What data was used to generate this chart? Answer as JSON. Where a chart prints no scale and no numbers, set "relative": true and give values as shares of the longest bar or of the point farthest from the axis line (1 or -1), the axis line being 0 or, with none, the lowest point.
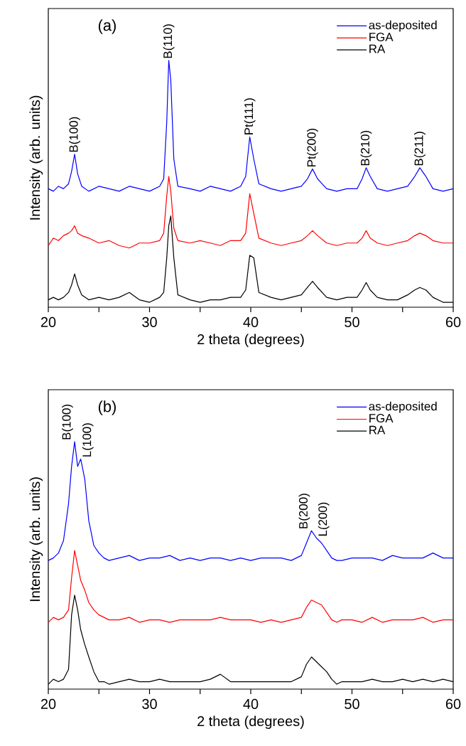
{
  "chart_data": [
    {
      "type": "line",
      "relative": true,
      "xlabel": "2 theta (degrees)",
      "ylabel": "Intensity (arb. units)",
      "legend": "top right",
      "xlim": [
        20,
        60
      ],
      "xticks": [
        20,
        {
          "value": 25,
          "label": null
        },
        30,
        {
          "value": 35,
          "label": null
        },
        40,
        {
          "value": 45,
          "label": null
        },
        50,
        {
          "value": 55,
          "label": null
        },
        60
      ],
      "x": [
        20,
        20.5,
        21,
        21.5,
        22,
        22.3,
        22.6,
        22.9,
        23.3,
        24,
        25,
        26,
        27,
        28,
        29,
        30,
        31,
        31.4,
        31.7,
        31.9,
        32.1,
        32.4,
        32.8,
        34,
        35,
        36,
        37,
        38,
        39,
        39.5,
        39.9,
        40.3,
        40.8,
        42,
        43,
        44,
        45,
        45.6,
        46.1,
        46.6,
        47.5,
        48.5,
        49.5,
        50.5,
        51,
        51.4,
        51.8,
        52.5,
        53.5,
        54.5,
        55.5,
        56.2,
        56.7,
        57.3,
        58,
        59,
        60
      ],
      "series": [
        {
          "name": "as-deposited",
          "color": "#0000ff",
          "values": [
            0.48,
            0.47,
            0.49,
            0.48,
            0.5,
            0.55,
            0.62,
            0.54,
            0.49,
            0.47,
            0.49,
            0.48,
            0.47,
            0.49,
            0.48,
            0.47,
            0.49,
            0.52,
            0.75,
            1.0,
            0.92,
            0.6,
            0.49,
            0.48,
            0.47,
            0.49,
            0.48,
            0.47,
            0.49,
            0.53,
            0.69,
            0.6,
            0.5,
            0.48,
            0.47,
            0.48,
            0.49,
            0.52,
            0.56,
            0.52,
            0.48,
            0.47,
            0.48,
            0.48,
            0.52,
            0.565,
            0.53,
            0.48,
            0.47,
            0.48,
            0.49,
            0.53,
            0.565,
            0.53,
            0.48,
            0.47,
            0.48
          ]
        },
        {
          "name": "FGA",
          "color": "#ff0000",
          "values": [
            0.25,
            0.28,
            0.27,
            0.29,
            0.3,
            0.31,
            0.33,
            0.3,
            0.29,
            0.28,
            0.26,
            0.27,
            0.25,
            0.24,
            0.26,
            0.26,
            0.27,
            0.3,
            0.45,
            0.53,
            0.47,
            0.32,
            0.27,
            0.26,
            0.27,
            0.26,
            0.25,
            0.27,
            0.27,
            0.3,
            0.46,
            0.38,
            0.28,
            0.26,
            0.25,
            0.26,
            0.27,
            0.29,
            0.31,
            0.29,
            0.26,
            0.25,
            0.26,
            0.26,
            0.28,
            0.31,
            0.28,
            0.26,
            0.25,
            0.26,
            0.27,
            0.29,
            0.3,
            0.29,
            0.27,
            0.26,
            0.26
          ]
        },
        {
          "name": "RA",
          "color": "#000000",
          "values": [
            0.03,
            0.04,
            0.03,
            0.04,
            0.06,
            0.09,
            0.135,
            0.09,
            0.05,
            0.03,
            0.04,
            0.03,
            0.04,
            0.06,
            0.03,
            0.02,
            0.04,
            0.06,
            0.2,
            0.33,
            0.37,
            0.2,
            0.05,
            0.03,
            0.02,
            0.03,
            0.03,
            0.04,
            0.04,
            0.07,
            0.21,
            0.2,
            0.06,
            0.04,
            0.03,
            0.04,
            0.05,
            0.08,
            0.105,
            0.08,
            0.04,
            0.03,
            0.04,
            0.04,
            0.07,
            0.1,
            0.07,
            0.04,
            0.03,
            0.03,
            0.05,
            0.07,
            0.08,
            0.07,
            0.04,
            0.02,
            0.02
          ]
        }
      ],
      "annotations": [
        "(a)",
        {
          "text": "B(100)",
          "x": 22.6,
          "y": 0.62
        },
        {
          "text": "B(110)",
          "x": 31.9,
          "y": 1.0
        },
        {
          "text": "Pt(111)",
          "x": 39.9,
          "y": 0.69
        },
        {
          "text": "Pt(200)",
          "x": 46.1,
          "y": 0.56
        },
        {
          "text": "B(210)",
          "x": 51.4,
          "y": 0.565
        },
        {
          "text": "B(211)",
          "x": 56.7,
          "y": 0.565
        }
      ]
    },
    {
      "type": "line",
      "relative": true,
      "xlabel": "2 theta (degrees)",
      "ylabel": "Intensity (arb. units)",
      "legend": "top right",
      "xlim": [
        20,
        60
      ],
      "xticks": [
        20,
        {
          "value": 25,
          "label": null
        },
        30,
        {
          "value": 35,
          "label": null
        },
        40,
        {
          "value": 45,
          "label": null
        },
        50,
        {
          "value": 55,
          "label": null
        },
        60
      ],
      "x": [
        20,
        20.5,
        21,
        21.5,
        22,
        22.3,
        22.6,
        22.9,
        23.2,
        23.6,
        24,
        24.5,
        25,
        25.5,
        26,
        27,
        28,
        29,
        30,
        31,
        32,
        33,
        34,
        35,
        36,
        37,
        38,
        39,
        40,
        41,
        42,
        43,
        44,
        45,
        45.5,
        46,
        46.5,
        47,
        47.5,
        48,
        48.5,
        49,
        50,
        51,
        52,
        53,
        54,
        55,
        56,
        57,
        58,
        59,
        60
      ],
      "series": [
        {
          "name": "as-deposited",
          "color": "#0000ff",
          "values": [
            0.52,
            0.53,
            0.55,
            0.6,
            0.75,
            0.9,
            1.0,
            0.9,
            0.93,
            0.85,
            0.68,
            0.58,
            0.55,
            0.53,
            0.52,
            0.53,
            0.54,
            0.52,
            0.53,
            0.53,
            0.54,
            0.52,
            0.53,
            0.52,
            0.53,
            0.53,
            0.52,
            0.53,
            0.52,
            0.53,
            0.53,
            0.53,
            0.52,
            0.54,
            0.59,
            0.64,
            0.61,
            0.59,
            0.56,
            0.53,
            0.52,
            0.52,
            0.53,
            0.53,
            0.53,
            0.52,
            0.54,
            0.53,
            0.53,
            0.53,
            0.55,
            0.53,
            0.53
          ]
        },
        {
          "name": "FGA",
          "color": "#ff0000",
          "values": [
            0.27,
            0.29,
            0.28,
            0.29,
            0.32,
            0.45,
            0.56,
            0.5,
            0.44,
            0.4,
            0.35,
            0.32,
            0.3,
            0.29,
            0.28,
            0.28,
            0.29,
            0.27,
            0.28,
            0.28,
            0.27,
            0.28,
            0.28,
            0.28,
            0.28,
            0.29,
            0.28,
            0.28,
            0.28,
            0.27,
            0.28,
            0.27,
            0.28,
            0.29,
            0.33,
            0.36,
            0.35,
            0.34,
            0.31,
            0.28,
            0.27,
            0.28,
            0.28,
            0.27,
            0.29,
            0.27,
            0.28,
            0.28,
            0.28,
            0.29,
            0.27,
            0.28,
            0.28
          ]
        },
        {
          "name": "RA",
          "color": "#000000",
          "values": [
            0.02,
            0.04,
            0.03,
            0.04,
            0.08,
            0.3,
            0.38,
            0.32,
            0.24,
            0.18,
            0.13,
            0.07,
            0.03,
            0.03,
            0.02,
            0.03,
            0.04,
            0.03,
            0.03,
            0.04,
            0.03,
            0.03,
            0.03,
            0.03,
            0.04,
            0.06,
            0.03,
            0.03,
            0.03,
            0.03,
            0.03,
            0.03,
            0.03,
            0.05,
            0.1,
            0.13,
            0.11,
            0.09,
            0.07,
            0.04,
            0.02,
            0.03,
            0.03,
            0.03,
            0.04,
            0.03,
            0.03,
            0.04,
            0.03,
            0.04,
            0.03,
            0.04,
            0.03
          ]
        }
      ],
      "annotations": [
        "(b)",
        {
          "text": "B(100)",
          "x": 22.6,
          "y": 1.0
        },
        {
          "text": "L(100)",
          "x": 23.2,
          "y": 0.93
        },
        {
          "text": "B(200)",
          "x": 46,
          "y": 0.64
        },
        {
          "text": "L(200)",
          "x": 46.5,
          "y": 0.61
        }
      ]
    }
  ]
}
